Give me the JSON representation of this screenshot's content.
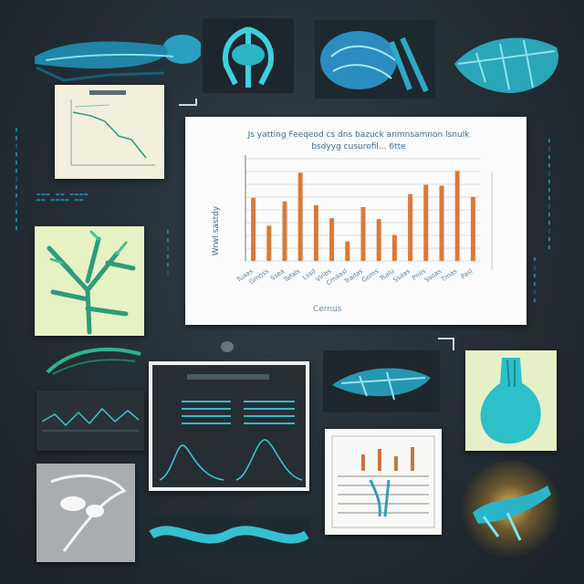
{
  "main_chart": {
    "title_line1": "Js yatting Feeqeod cs dns bazuck anmnsamnon lsnulk",
    "title_line2": "bsdyyg cusurofil... 6tte",
    "ylabel": "Wrwl sastdy",
    "xlabel": "Cernus",
    "categories": [
      "Tuaas",
      "Gmoss",
      "Ssea",
      "Tafals",
      "Lssd",
      "Vinbs",
      "Cmaasl",
      "Tradas",
      "Goms",
      "Tsalu",
      "Ssaas",
      "Pnlis",
      "Ssoas",
      "Tmas",
      "Pasl"
    ],
    "values": [
      68,
      38,
      64,
      95,
      60,
      46,
      21,
      58,
      45,
      28,
      72,
      82,
      81,
      97,
      69
    ],
    "ylim": [
      0,
      110
    ],
    "bar_color": "#d97a3a"
  },
  "colors": {
    "background": "#232c33",
    "accent": "#2ab3c9",
    "paper": "#fbfbfb"
  }
}
